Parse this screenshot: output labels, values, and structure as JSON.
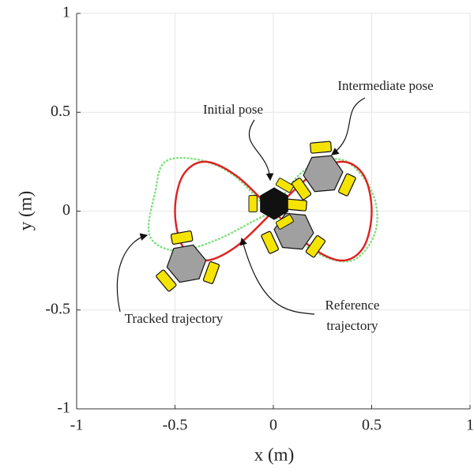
{
  "chart_data": {
    "type": "line",
    "xlabel": "x (m)",
    "ylabel": "y (m)",
    "xlim": [
      -1,
      1
    ],
    "ylim": [
      -1,
      1
    ],
    "xticks": [
      -1,
      -0.5,
      0,
      0.5,
      1
    ],
    "yticks": [
      -1,
      -0.5,
      0,
      0.5,
      1
    ],
    "grid": true,
    "series": [
      {
        "color": "#7fe07f",
        "style": "dotted",
        "x": [
          0,
          0.15,
          0.35,
          0.5,
          0.52,
          0.4,
          0.2,
          0,
          -0.2,
          -0.38,
          -0.55,
          -0.6,
          -0.63,
          -0.5,
          -0.3,
          -0.1,
          0
        ],
        "values": [
          0,
          0.2,
          0.26,
          0.1,
          -0.1,
          -0.25,
          -0.2,
          -0.02,
          0.18,
          0.26,
          0.25,
          0.1,
          -0.12,
          -0.2,
          -0.15,
          -0.05,
          0
        ]
      },
      {
        "color": "#e02020",
        "style": "solid",
        "x": [
          0,
          0.19,
          0.35,
          0.46,
          0.5,
          0.46,
          0.35,
          0.19,
          0,
          -0.19,
          -0.35,
          -0.46,
          -0.5,
          -0.46,
          -0.35,
          -0.19,
          0
        ],
        "values": [
          0,
          0.18,
          0.25,
          0.18,
          0,
          -0.18,
          -0.25,
          -0.18,
          0,
          0.18,
          0.25,
          0.18,
          0,
          -0.18,
          -0.25,
          -0.18,
          0
        ]
      }
    ],
    "annotations": [
      {
        "text": "Initial pose"
      },
      {
        "text": "Intermediate pose"
      },
      {
        "text": "Tracked trajectory"
      },
      {
        "text": [
          "Reference",
          "trajectory"
        ]
      }
    ]
  }
}
